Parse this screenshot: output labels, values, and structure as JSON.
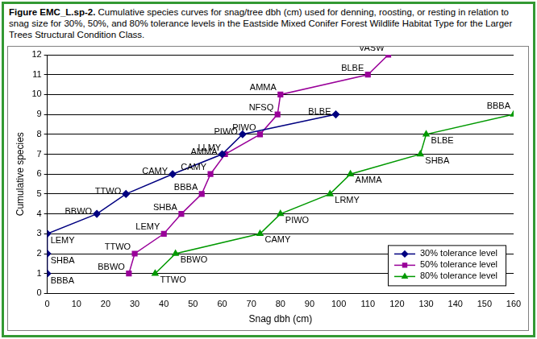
{
  "chart_data": {
    "type": "line",
    "title": "Figure EMC_L.sp-2. Cumulative species curves for snag/tree dbh (cm) used for denning, roosting, or resting in relation to snag size for 30%, 50%, and 80% tolerance levels in the Eastside Mixed Conifer Forest Wildlife Habitat Type for the Larger Trees Structural Condition Class.",
    "x_label": "Snag dbh (cm)",
    "y_label": "Cumulative species",
    "xlim": [
      0,
      160
    ],
    "xticks": [
      0,
      10,
      20,
      30,
      40,
      50,
      60,
      70,
      80,
      90,
      100,
      110,
      120,
      130,
      140,
      150,
      160
    ],
    "ylim": [
      0,
      12
    ],
    "yticks": [
      0,
      1,
      2,
      3,
      4,
      5,
      6,
      7,
      8,
      9,
      10,
      11,
      12
    ],
    "grid": "y",
    "legend": "lower right",
    "series": [
      {
        "name": "30% tolerance level",
        "color": "#000080",
        "marker": "diamond",
        "x": [
          0,
          0,
          0,
          17,
          27,
          43,
          60,
          67,
          99
        ],
        "values": [
          1,
          2,
          3,
          4,
          5,
          6,
          7,
          8,
          9
        ],
        "point_labels": [
          "BBBA",
          "SHBA",
          "LEMY",
          "BBWO",
          "TTWO",
          "CAMY",
          "AMMA",
          "PIWO",
          "BLBE"
        ]
      },
      {
        "name": "50% tolerance level",
        "color": "#990099",
        "marker": "square",
        "x": [
          28,
          30,
          40,
          46,
          53,
          56,
          61,
          73,
          79,
          80,
          110,
          117
        ],
        "values": [
          1,
          2,
          3,
          4,
          5,
          6,
          7,
          8,
          9,
          10,
          11,
          12
        ],
        "point_labels": [
          "BBWO",
          "TTWO",
          "LEMY",
          "SHBA",
          "BBBA",
          "CAMY",
          "LLMY",
          "PIWO",
          "NFSQ",
          "AMMA",
          "BLBE",
          "VASW"
        ]
      },
      {
        "name": "80% tolerance level",
        "color": "#009900",
        "marker": "triangle",
        "x": [
          37,
          44,
          73,
          80,
          97,
          104,
          128,
          130,
          160
        ],
        "values": [
          1,
          2,
          3,
          4,
          5,
          6,
          7,
          8,
          9
        ],
        "point_labels": [
          "TTWO",
          "BBWO",
          "CAMY",
          "PIWO",
          "LRMY",
          "AMMA",
          "SHBA",
          "BLBE",
          "BBBA"
        ]
      }
    ]
  }
}
